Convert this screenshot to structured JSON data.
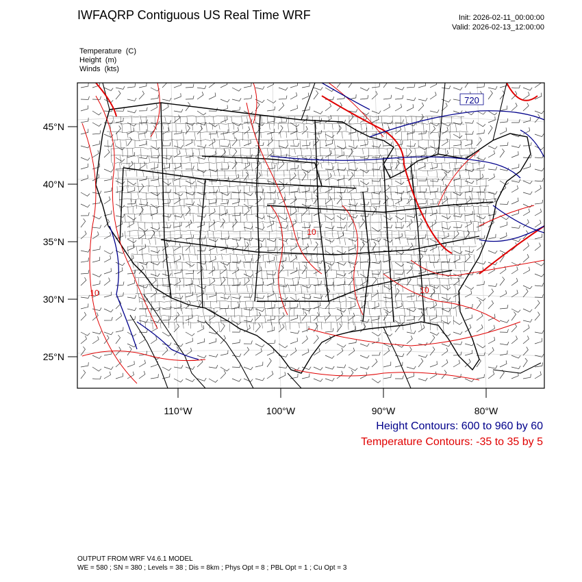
{
  "header": {
    "title": "IWFAQRP Contiguous US Real Time WRF",
    "init": "Init: 2026-02-11_00:00:00",
    "valid": "Valid: 2026-02-13_12:00:00"
  },
  "fields": [
    {
      "name": "Temperature",
      "unit": "(C)"
    },
    {
      "name": "Height",
      "unit": "(m)"
    },
    {
      "name": "Winds",
      "unit": "(kts)"
    }
  ],
  "map": {
    "lat_labels": [
      "45°N",
      "40°N",
      "35°N",
      "30°N",
      "25°N"
    ],
    "lon_labels": [
      "110°W",
      "100°W",
      "90°W",
      "80°W"
    ],
    "contour_labels": {
      "height_720": "720",
      "temp_10a": "10",
      "temp_10b": "10",
      "temp_10c": "10"
    },
    "colors": {
      "height": "#00008b",
      "temperature": "#e00000",
      "borders": "#000000"
    }
  },
  "legend": {
    "height": "Height Contours: 600 to 960 by 60",
    "temperature": "Temperature Contours: -35 to 35 by 5"
  },
  "footer": {
    "line1": "OUTPUT FROM WRF V4.6.1 MODEL",
    "line2": "WE = 580 ; SN = 380 ; Levels = 38 ; Dis = 8km ; Phys Opt = 8 ; PBL Opt = 1 ; Cu Opt = 3"
  }
}
